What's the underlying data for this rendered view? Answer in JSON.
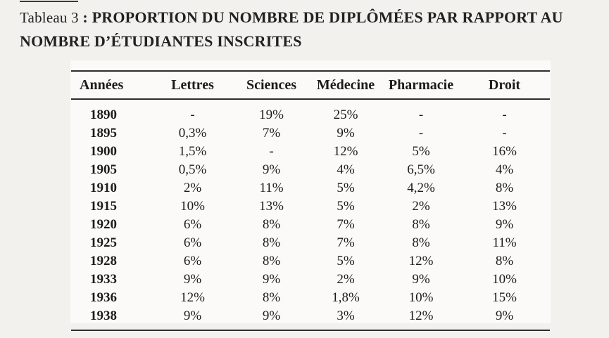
{
  "page": {
    "background_color": "#f2f1ee",
    "panel_background_color": "#fbfaf8",
    "text_color": "#1c1c1c",
    "rule_color": "#2e2d2c"
  },
  "heading": {
    "label": "Tableau 3",
    "title_line1": " : PROPORTION DU NOMBRE DE DIPLÔMÉES PAR RAPPORT AU",
    "title_line2": "NOMBRE D’ÉTUDIANTES INSCRITES"
  },
  "table": {
    "columns": [
      "Années",
      "Lettres",
      "Sciences",
      "Médecine",
      "Pharmacie",
      "Droit"
    ],
    "rows": [
      {
        "year": "1890",
        "values": [
          "-",
          "19%",
          "25%",
          "-",
          "-"
        ]
      },
      {
        "year": "1895",
        "values": [
          "0,3%",
          "7%",
          "9%",
          "-",
          "-"
        ]
      },
      {
        "year": "1900",
        "values": [
          "1,5%",
          "-",
          "12%",
          "5%",
          "16%"
        ]
      },
      {
        "year": "1905",
        "values": [
          "0,5%",
          "9%",
          "4%",
          "6,5%",
          "4%"
        ]
      },
      {
        "year": "1910",
        "values": [
          "2%",
          "11%",
          "5%",
          "4,2%",
          "8%"
        ]
      },
      {
        "year": "1915",
        "values": [
          "10%",
          "13%",
          "5%",
          "2%",
          "13%"
        ]
      },
      {
        "year": "1920",
        "values": [
          "6%",
          "8%",
          "7%",
          "8%",
          "9%"
        ]
      },
      {
        "year": "1925",
        "values": [
          "6%",
          "8%",
          "7%",
          "8%",
          "11%"
        ]
      },
      {
        "year": "1928",
        "values": [
          "6%",
          "8%",
          "5%",
          "12%",
          "8%"
        ]
      },
      {
        "year": "1933",
        "values": [
          "9%",
          "9%",
          "2%",
          "9%",
          "10%"
        ]
      },
      {
        "year": "1936",
        "values": [
          "12%",
          "8%",
          "1,8%",
          "10%",
          "15%"
        ]
      },
      {
        "year": "1938",
        "values": [
          "9%",
          "9%",
          "3%",
          "12%",
          "9%"
        ]
      }
    ]
  }
}
